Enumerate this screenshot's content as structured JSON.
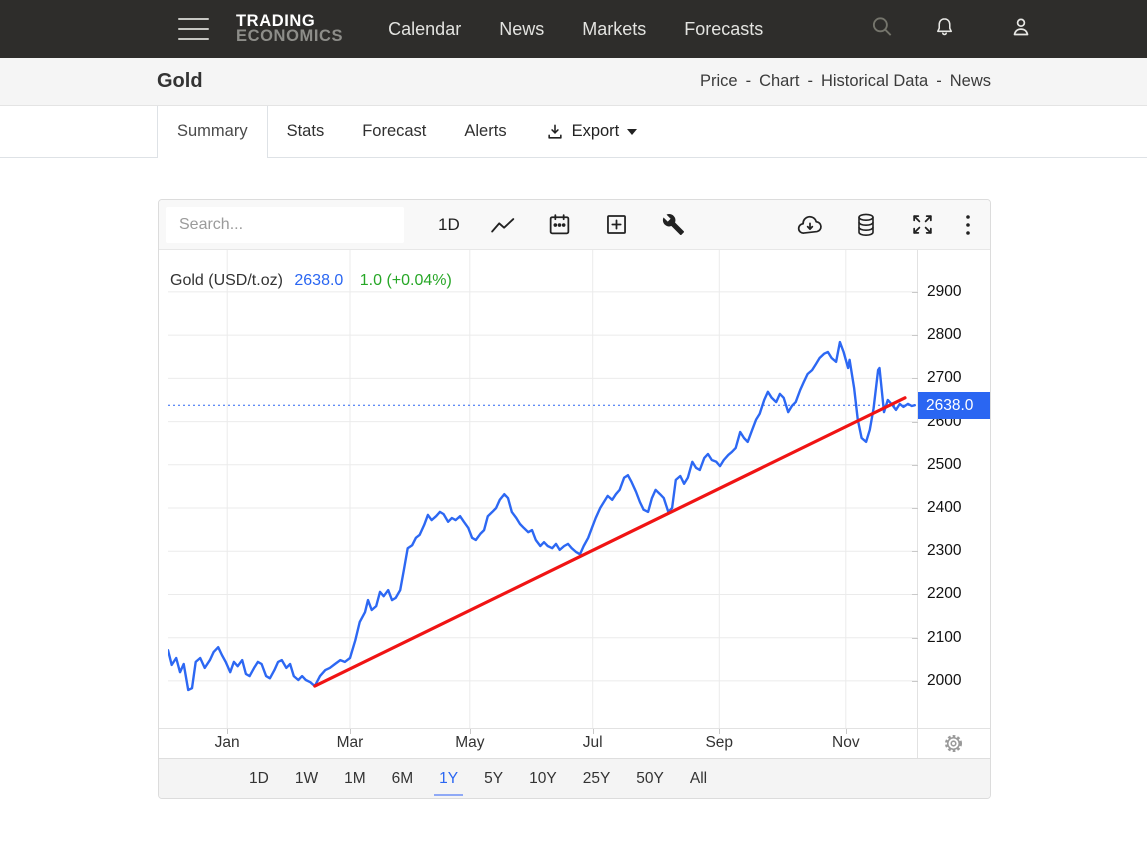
{
  "navbar": {
    "logo_line1": "TRADING",
    "logo_line2": "ECONOMICS",
    "links": [
      "Calendar",
      "News",
      "Markets",
      "Forecasts"
    ]
  },
  "header": {
    "title": "Gold",
    "links": [
      "Price",
      "Chart",
      "Historical Data",
      "News"
    ],
    "separator": "-"
  },
  "tabs": {
    "items": [
      "Summary",
      "Stats",
      "Forecast",
      "Alerts"
    ],
    "active": "Summary",
    "export_label": "Export"
  },
  "chart_toolbar": {
    "search_placeholder": "Search...",
    "interval_label": "1D"
  },
  "range_selector": {
    "options": [
      "1D",
      "1W",
      "1M",
      "6M",
      "1Y",
      "5Y",
      "10Y",
      "25Y",
      "50Y",
      "All"
    ],
    "active": "1Y"
  },
  "icons": {
    "navbar": [
      "menu-icon",
      "search-icon",
      "bell-icon",
      "user-icon"
    ],
    "tabs": [
      "download-icon",
      "caret-down-icon"
    ],
    "toolbar": [
      "line-chart-icon",
      "calendar-icon",
      "add-square-icon",
      "wrench-icon",
      "cloud-download-icon",
      "database-icon",
      "fullscreen-icon",
      "kebab-menu-icon"
    ],
    "axis": [
      "gear-icon"
    ]
  },
  "colors": {
    "accent_blue": "#2a66f2",
    "line_blue": "#2d68f3",
    "badge_blue": "#2a66f2",
    "positive_green": "#27a727",
    "trendline_red": "#f01414",
    "grid": "#ebebeb",
    "badge_text": "#ffffff"
  },
  "chart_data": {
    "type": "line",
    "title": "Gold (USD/t.oz)",
    "unit": "USD/t.oz",
    "last_price": 2638.0,
    "change": 1.0,
    "change_pct": "+0.04%",
    "legend": {
      "name": "Gold (USD/t.oz)",
      "price": "2638.0",
      "change": "1.0 (+0.04%)"
    },
    "price_badge": "2638.0",
    "current_price": 2638.0,
    "ylim": [
      1891,
      2997
    ],
    "y_ticks": [
      2900,
      2800,
      2700,
      2600,
      2500,
      2400,
      2300,
      2200,
      2100,
      2000
    ],
    "x_ticks": [
      {
        "label": "Jan",
        "t": 0.079
      },
      {
        "label": "Mar",
        "t": 0.243
      },
      {
        "label": "May",
        "t": 0.403
      },
      {
        "label": "Jul",
        "t": 0.567
      },
      {
        "label": "Sep",
        "t": 0.736
      },
      {
        "label": "Nov",
        "t": 0.905
      }
    ],
    "grid": true,
    "legend_position": "top-left",
    "trendline": [
      [
        0.196,
        1988
      ],
      [
        0.984,
        2655
      ]
    ],
    "series": [
      [
        0.0,
        2071
      ],
      [
        0.005,
        2037
      ],
      [
        0.011,
        2053
      ],
      [
        0.016,
        2020
      ],
      [
        0.021,
        2039
      ],
      [
        0.027,
        1979
      ],
      [
        0.032,
        1983
      ],
      [
        0.037,
        2044
      ],
      [
        0.043,
        2053
      ],
      [
        0.049,
        2030
      ],
      [
        0.056,
        2048
      ],
      [
        0.061,
        2067
      ],
      [
        0.067,
        2078
      ],
      [
        0.072,
        2060
      ],
      [
        0.077,
        2044
      ],
      [
        0.083,
        2020
      ],
      [
        0.088,
        2044
      ],
      [
        0.093,
        2034
      ],
      [
        0.099,
        2048
      ],
      [
        0.104,
        2016
      ],
      [
        0.109,
        2011
      ],
      [
        0.115,
        2030
      ],
      [
        0.12,
        2044
      ],
      [
        0.125,
        2039
      ],
      [
        0.131,
        2011
      ],
      [
        0.136,
        2006
      ],
      [
        0.142,
        2025
      ],
      [
        0.147,
        2044
      ],
      [
        0.152,
        2048
      ],
      [
        0.158,
        2030
      ],
      [
        0.163,
        2039
      ],
      [
        0.168,
        2011
      ],
      [
        0.174,
        2002
      ],
      [
        0.179,
        2011
      ],
      [
        0.184,
        2002
      ],
      [
        0.19,
        1997
      ],
      [
        0.196,
        1988
      ],
      [
        0.203,
        2011
      ],
      [
        0.21,
        2025
      ],
      [
        0.216,
        2030
      ],
      [
        0.223,
        2039
      ],
      [
        0.23,
        2048
      ],
      [
        0.236,
        2044
      ],
      [
        0.243,
        2053
      ],
      [
        0.25,
        2094
      ],
      [
        0.256,
        2136
      ],
      [
        0.263,
        2159
      ],
      [
        0.267,
        2187
      ],
      [
        0.272,
        2164
      ],
      [
        0.278,
        2173
      ],
      [
        0.283,
        2206
      ],
      [
        0.288,
        2196
      ],
      [
        0.294,
        2210
      ],
      [
        0.299,
        2187
      ],
      [
        0.304,
        2192
      ],
      [
        0.31,
        2210
      ],
      [
        0.315,
        2257
      ],
      [
        0.32,
        2307
      ],
      [
        0.326,
        2314
      ],
      [
        0.331,
        2331
      ],
      [
        0.336,
        2338
      ],
      [
        0.342,
        2361
      ],
      [
        0.347,
        2384
      ],
      [
        0.352,
        2372
      ],
      [
        0.358,
        2381
      ],
      [
        0.363,
        2391
      ],
      [
        0.368,
        2386
      ],
      [
        0.374,
        2368
      ],
      [
        0.379,
        2377
      ],
      [
        0.384,
        2372
      ],
      [
        0.39,
        2381
      ],
      [
        0.395,
        2368
      ],
      [
        0.401,
        2354
      ],
      [
        0.406,
        2331
      ],
      [
        0.411,
        2326
      ],
      [
        0.417,
        2340
      ],
      [
        0.422,
        2349
      ],
      [
        0.427,
        2381
      ],
      [
        0.433,
        2391
      ],
      [
        0.438,
        2400
      ],
      [
        0.443,
        2419
      ],
      [
        0.449,
        2432
      ],
      [
        0.454,
        2423
      ],
      [
        0.459,
        2391
      ],
      [
        0.465,
        2377
      ],
      [
        0.47,
        2363
      ],
      [
        0.475,
        2354
      ],
      [
        0.481,
        2344
      ],
      [
        0.486,
        2349
      ],
      [
        0.491,
        2326
      ],
      [
        0.497,
        2312
      ],
      [
        0.502,
        2321
      ],
      [
        0.507,
        2312
      ],
      [
        0.513,
        2307
      ],
      [
        0.518,
        2317
      ],
      [
        0.523,
        2303
      ],
      [
        0.529,
        2312
      ],
      [
        0.534,
        2317
      ],
      [
        0.539,
        2307
      ],
      [
        0.545,
        2298
      ],
      [
        0.55,
        2293
      ],
      [
        0.555,
        2312
      ],
      [
        0.561,
        2331
      ],
      [
        0.566,
        2354
      ],
      [
        0.571,
        2377
      ],
      [
        0.577,
        2400
      ],
      [
        0.582,
        2414
      ],
      [
        0.587,
        2428
      ],
      [
        0.593,
        2419
      ],
      [
        0.598,
        2432
      ],
      [
        0.603,
        2442
      ],
      [
        0.609,
        2470
      ],
      [
        0.614,
        2476
      ],
      [
        0.619,
        2460
      ],
      [
        0.625,
        2437
      ],
      [
        0.63,
        2414
      ],
      [
        0.635,
        2396
      ],
      [
        0.641,
        2391
      ],
      [
        0.646,
        2423
      ],
      [
        0.651,
        2442
      ],
      [
        0.657,
        2432
      ],
      [
        0.662,
        2423
      ],
      [
        0.668,
        2391
      ],
      [
        0.673,
        2400
      ],
      [
        0.678,
        2465
      ],
      [
        0.684,
        2474
      ],
      [
        0.689,
        2456
      ],
      [
        0.694,
        2470
      ],
      [
        0.7,
        2507
      ],
      [
        0.705,
        2493
      ],
      [
        0.71,
        2488
      ],
      [
        0.716,
        2516
      ],
      [
        0.721,
        2525
      ],
      [
        0.726,
        2511
      ],
      [
        0.732,
        2507
      ],
      [
        0.737,
        2497
      ],
      [
        0.742,
        2511
      ],
      [
        0.748,
        2523
      ],
      [
        0.753,
        2530
      ],
      [
        0.758,
        2539
      ],
      [
        0.764,
        2576
      ],
      [
        0.769,
        2562
      ],
      [
        0.774,
        2553
      ],
      [
        0.78,
        2581
      ],
      [
        0.785,
        2604
      ],
      [
        0.79,
        2618
      ],
      [
        0.796,
        2650
      ],
      [
        0.801,
        2669
      ],
      [
        0.806,
        2655
      ],
      [
        0.812,
        2645
      ],
      [
        0.817,
        2664
      ],
      [
        0.822,
        2655
      ],
      [
        0.828,
        2622
      ],
      [
        0.833,
        2636
      ],
      [
        0.838,
        2645
      ],
      [
        0.844,
        2673
      ],
      [
        0.849,
        2692
      ],
      [
        0.854,
        2710
      ],
      [
        0.86,
        2719
      ],
      [
        0.865,
        2733
      ],
      [
        0.87,
        2747
      ],
      [
        0.876,
        2757
      ],
      [
        0.881,
        2761
      ],
      [
        0.886,
        2747
      ],
      [
        0.892,
        2738
      ],
      [
        0.897,
        2784
      ],
      [
        0.902,
        2761
      ],
      [
        0.908,
        2724
      ],
      [
        0.91,
        2743
      ],
      [
        0.916,
        2678
      ],
      [
        0.921,
        2604
      ],
      [
        0.926,
        2562
      ],
      [
        0.932,
        2553
      ],
      [
        0.937,
        2581
      ],
      [
        0.942,
        2631
      ],
      [
        0.948,
        2719
      ],
      [
        0.95,
        2724
      ],
      [
        0.956,
        2622
      ],
      [
        0.961,
        2650
      ],
      [
        0.966,
        2641
      ],
      [
        0.972,
        2627
      ],
      [
        0.977,
        2641
      ],
      [
        0.982,
        2634
      ],
      [
        0.988,
        2641
      ],
      [
        0.993,
        2636
      ],
      [
        0.997,
        2638
      ]
    ]
  }
}
